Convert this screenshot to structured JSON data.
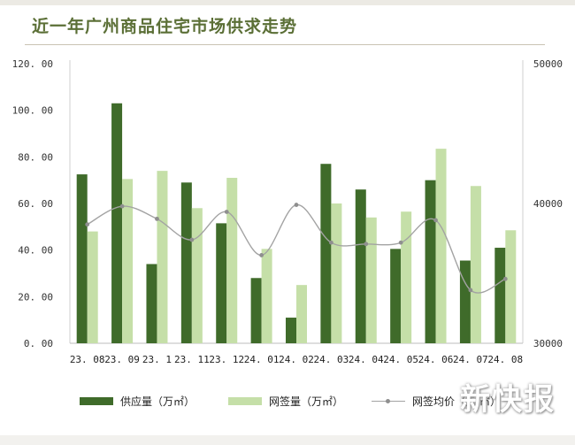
{
  "header": {
    "title": "近一年广州商品住宅市场供求走势"
  },
  "watermark": {
    "text": "新快报"
  },
  "colors": {
    "supply": "#3f6b2a",
    "signed": "#c5dfa8",
    "price_line": "#a3a3a3",
    "price_marker": "#8f8f8f"
  },
  "chart_data": {
    "type": "bar",
    "categories": [
      "23. 08",
      "23. 09",
      "23. 1",
      "23. 11",
      "23. 12",
      "24. 01",
      "24. 02",
      "24. 03",
      "24. 04",
      "24. 05",
      "24. 06",
      "24. 07",
      "24. 08"
    ],
    "series": [
      {
        "name": "供应量（万㎡）",
        "type": "bar",
        "axis": "left",
        "values": [
          72.5,
          103,
          34,
          69,
          51.5,
          28,
          11,
          77,
          66,
          40.5,
          70,
          35.5,
          41
        ]
      },
      {
        "name": "网签量（万㎡）",
        "type": "bar",
        "axis": "left",
        "values": [
          48,
          70.5,
          74,
          58,
          71,
          40.5,
          25,
          60,
          54,
          56.5,
          83.5,
          67.5,
          48.5
        ]
      },
      {
        "name": "网签均价（元/㎡）",
        "type": "line",
        "axis": "right",
        "values": [
          38500,
          39800,
          38900,
          37400,
          39400,
          36300,
          39900,
          37200,
          37100,
          37200,
          38800,
          33800,
          34600
        ]
      }
    ],
    "ylim_left": [
      0,
      120
    ],
    "yticks_left": [
      "0. 00",
      "20. 00",
      "40. 00",
      "60. 00",
      "80. 00",
      "100. 00",
      "120. 00"
    ],
    "ylim_right": [
      30000,
      50000
    ],
    "yticks_right": [
      "30000",
      "40000",
      "50000"
    ],
    "grid": false,
    "legend_position": "bottom"
  }
}
